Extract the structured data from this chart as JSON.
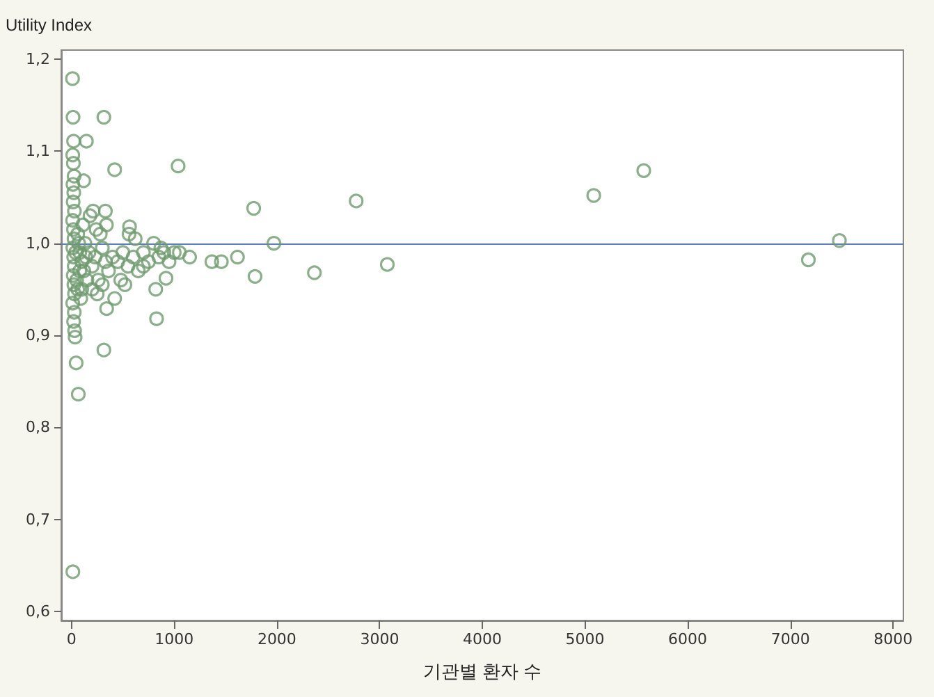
{
  "chart_data": {
    "type": "scatter",
    "ylabel": "Utility Index",
    "xlabel": "기관별 환자 수",
    "xlim": [
      -100,
      8100
    ],
    "xticks": [
      0,
      1000,
      2000,
      3000,
      4000,
      5000,
      6000,
      7000,
      8000
    ],
    "ylim": [
      0.59,
      1.21
    ],
    "yticks": [
      {
        "value": 0.6,
        "label": "0,6"
      },
      {
        "value": 0.7,
        "label": "0,7"
      },
      {
        "value": 0.8,
        "label": "0,8"
      },
      {
        "value": 0.9,
        "label": "0,9"
      },
      {
        "value": 1.0,
        "label": "1,0"
      },
      {
        "value": 1.1,
        "label": "1,1"
      },
      {
        "value": 1.2,
        "label": "1,2"
      }
    ],
    "marker": "circle",
    "ref_lines": [
      {
        "axis": "y",
        "value": 1.0,
        "label": null,
        "color": "#5b7fbf"
      }
    ],
    "series": [
      {
        "color": "#6e9a6e",
        "x": [
          10,
          15,
          20,
          12,
          18,
          25,
          14,
          22,
          16,
          28,
          11,
          19,
          24,
          13,
          21,
          26,
          17,
          23,
          29,
          12,
          27,
          20,
          30,
          35,
          45,
          66,
          13,
          60,
          80,
          100,
          120,
          150,
          60,
          90,
          130,
          170,
          200,
          230,
          260,
          300,
          330,
          360,
          400,
          450,
          500,
          550,
          600,
          650,
          700,
          750,
          800,
          850,
          900,
          950,
          1000,
          1050,
          1150,
          110,
          180,
          240,
          280,
          340,
          200,
          250,
          300,
          420,
          480,
          520,
          560,
          620,
          700,
          820,
          870,
          145,
          118,
          315,
          420,
          1038,
          330,
          210,
          565,
          1367,
          1459,
          1616,
          1774,
          1787,
          1971,
          2365,
          2772,
          3075,
          5085,
          5572,
          7175,
          7477,
          920,
          828,
          342,
          315,
          80,
          40,
          50,
          70,
          100,
          140
        ],
        "values": [
          1.179,
          1.137,
          1.111,
          1.096,
          1.087,
          1.073,
          1.064,
          1.055,
          1.045,
          1.035,
          1.025,
          1.015,
          1.005,
          0.995,
          0.985,
          0.975,
          0.965,
          0.955,
          0.945,
          0.935,
          0.925,
          0.915,
          0.905,
          0.898,
          0.87,
          0.836,
          0.643,
          1.01,
          0.99,
          0.98,
          0.97,
          0.96,
          0.95,
          0.94,
          1.0,
          0.99,
          0.975,
          0.985,
          0.96,
          0.995,
          0.98,
          0.97,
          0.985,
          0.98,
          0.99,
          0.975,
          0.985,
          0.97,
          0.99,
          0.98,
          1.0,
          0.985,
          0.99,
          0.98,
          0.99,
          0.99,
          0.985,
          1.02,
          1.03,
          1.015,
          1.01,
          1.02,
          0.95,
          0.945,
          0.955,
          0.94,
          0.96,
          0.955,
          1.01,
          1.005,
          0.975,
          0.95,
          0.995,
          1.111,
          1.068,
          1.137,
          1.08,
          1.084,
          1.035,
          1.035,
          1.018,
          0.98,
          0.98,
          0.985,
          1.038,
          0.964,
          1.0,
          0.968,
          1.046,
          0.977,
          1.052,
          1.079,
          0.982,
          1.003,
          0.962,
          0.918,
          0.929,
          0.884,
          0.97,
          0.99,
          0.96,
          1.0,
          0.95,
          0.985
        ]
      }
    ]
  }
}
